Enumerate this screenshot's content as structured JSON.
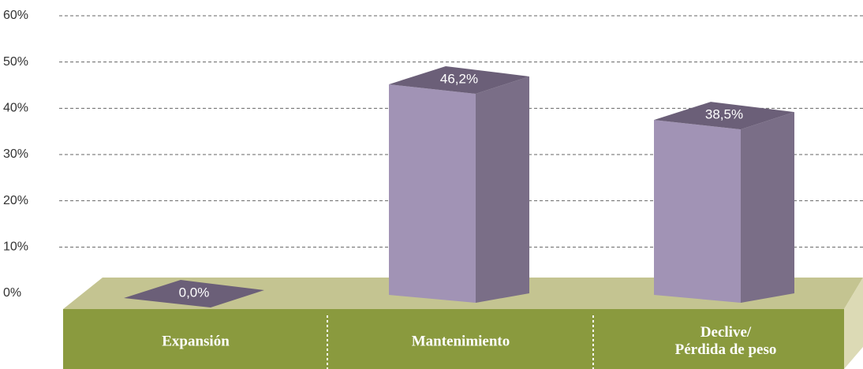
{
  "chart_data": {
    "type": "bar3d",
    "categories": [
      "Expansión",
      "Mantenimiento",
      "Declive/\nPérdida de peso"
    ],
    "values": [
      0,
      46.2,
      38.5
    ],
    "value_labels": [
      "0,0%",
      "46,2%",
      "38,5%"
    ],
    "color": "#a193b5",
    "ylim": [
      0,
      60
    ],
    "yticks": [
      {
        "value": 0,
        "label": "0%"
      },
      {
        "value": 10,
        "label": "10%"
      },
      {
        "value": 20,
        "label": "20%"
      },
      {
        "value": 30,
        "label": "30%"
      },
      {
        "value": 40,
        "label": "40%"
      },
      {
        "value": 50,
        "label": "50%"
      },
      {
        "value": 60,
        "label": "60%"
      }
    ],
    "grid": true
  }
}
